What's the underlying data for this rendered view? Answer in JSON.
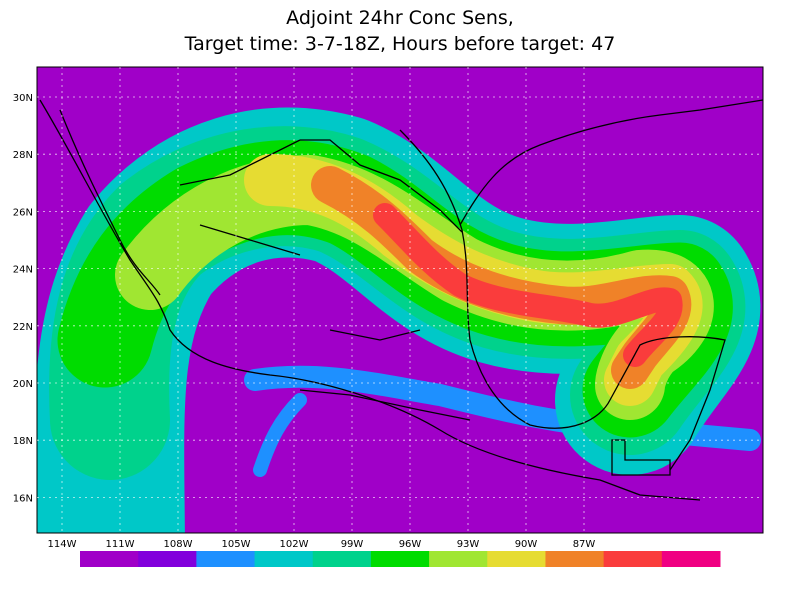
{
  "title_lines": [
    "Adjoint 24hr Conc Sens,",
    "Target time: 3-7-18Z, Hours before target: 47"
  ],
  "lat_labels": [
    "30N",
    "28N",
    "26N",
    "24N",
    "22N",
    "20N",
    "18N",
    "16N"
  ],
  "lon_labels": [
    "114W",
    "111W",
    "108W",
    "105W",
    "102W",
    "99W",
    "96W",
    "93W",
    "90W",
    "87W"
  ],
  "colorbar": [
    "#a000c8",
    "#8200dc",
    "#1e90ff",
    "#00c8c8",
    "#00d28c",
    "#00dc00",
    "#a0e632",
    "#e6dc32",
    "#f08228",
    "#fa3c3c",
    "#f00082"
  ]
}
